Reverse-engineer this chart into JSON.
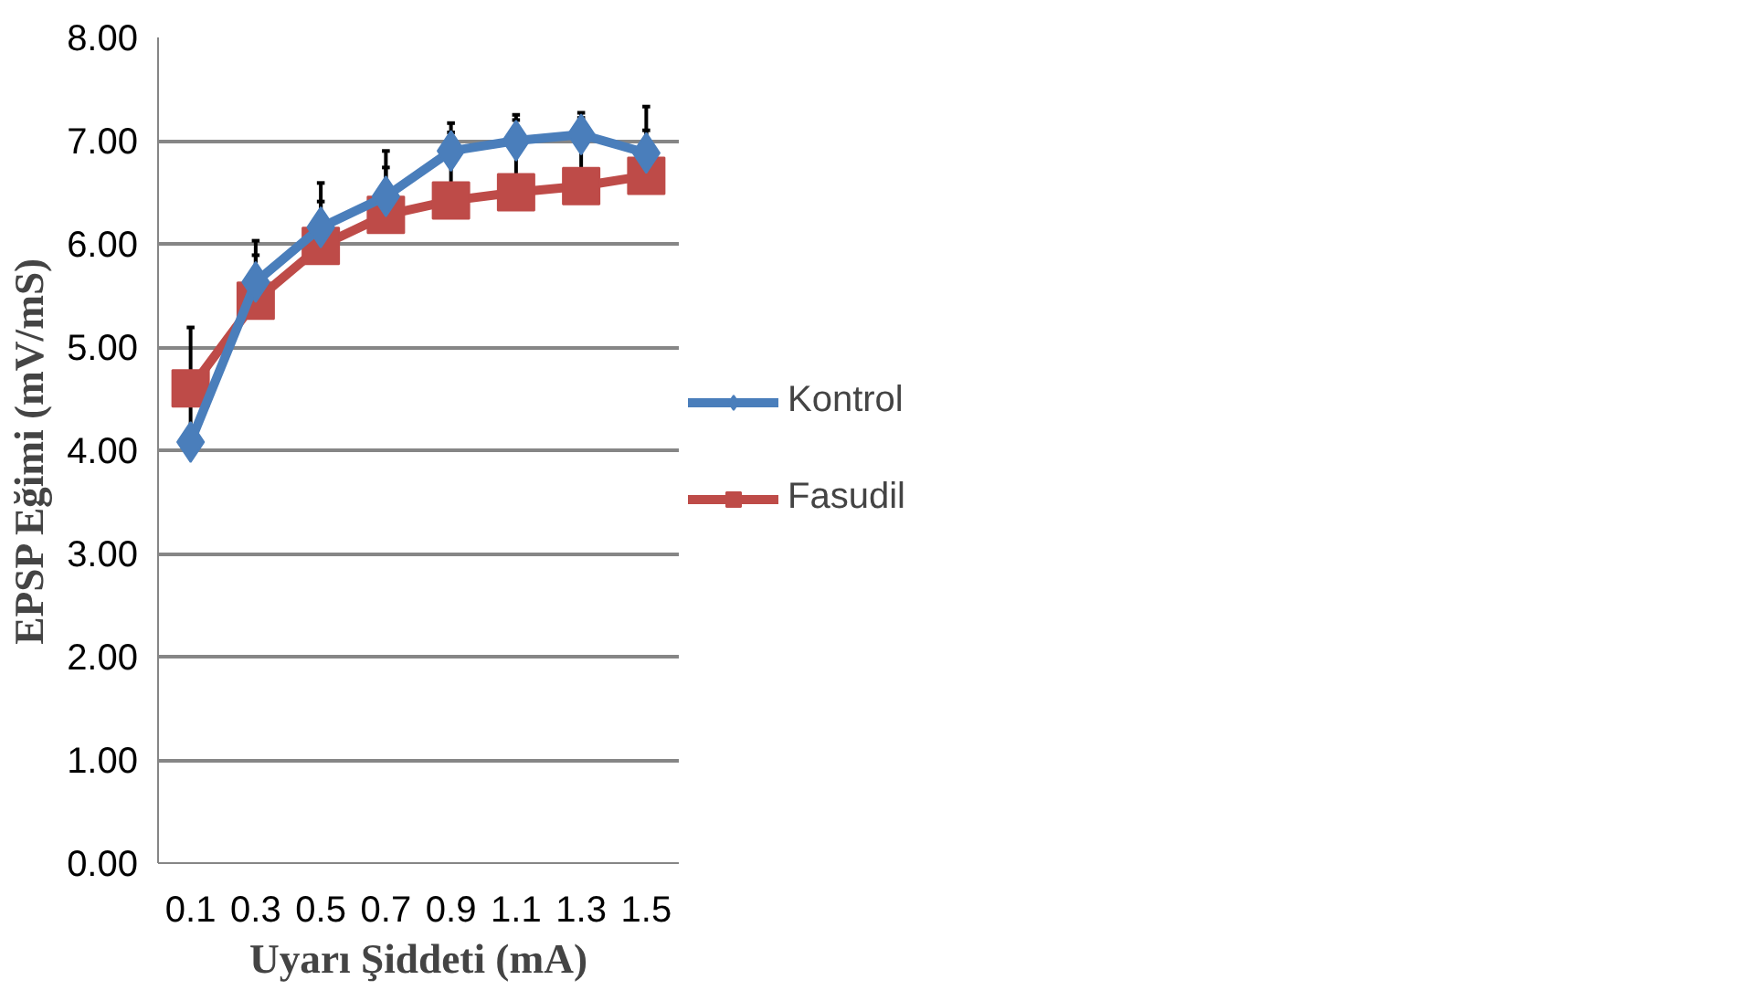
{
  "chart_data": {
    "type": "line",
    "xlabel": "Uyarı Şiddeti (mA)",
    "ylabel": "EPSP Eğimi (mV/mS)",
    "categories": [
      "0.1",
      "0.3",
      "0.5",
      "0.7",
      "0.9",
      "1.1",
      "1.3",
      "1.5"
    ],
    "ylim": [
      0,
      8
    ],
    "yticks": [
      {
        "value": 0,
        "label": "0.00"
      },
      {
        "value": 1,
        "label": "1.00"
      },
      {
        "value": 2,
        "label": "2.00"
      },
      {
        "value": 3,
        "label": "3.00"
      },
      {
        "value": 4,
        "label": "4.00"
      },
      {
        "value": 5,
        "label": "5.00"
      },
      {
        "value": 6,
        "label": "6.00"
      },
      {
        "value": 7,
        "label": "7.00"
      },
      {
        "value": 8,
        "label": "8.00"
      }
    ],
    "grid": "y",
    "legend": "right",
    "series": [
      {
        "name": "Kontrol",
        "color": "#4a7ebb",
        "marker": "diamond",
        "values": [
          4.08,
          5.63,
          6.16,
          6.46,
          6.9,
          7.0,
          7.06,
          6.88
        ],
        "errors": [
          [
            4.08,
            5.19
          ],
          [
            5.63,
            6.03
          ],
          [
            6.16,
            6.59
          ],
          [
            6.46,
            6.9
          ],
          [
            6.9,
            7.17
          ],
          [
            7.0,
            7.25
          ],
          [
            7.06,
            7.27
          ],
          [
            6.88,
            7.33
          ]
        ]
      },
      {
        "name": "Fasudil",
        "color": "#be4b48",
        "marker": "square",
        "values": [
          4.6,
          5.45,
          5.98,
          6.28,
          6.42,
          6.5,
          6.56,
          6.66
        ],
        "errors": [
          null,
          [
            5.45,
            5.89
          ],
          [
            5.98,
            6.41
          ],
          [
            6.28,
            6.74
          ],
          [
            6.42,
            7.08
          ],
          [
            6.5,
            7.2
          ],
          [
            6.56,
            7.22
          ],
          [
            6.66,
            7.1
          ]
        ]
      }
    ]
  }
}
